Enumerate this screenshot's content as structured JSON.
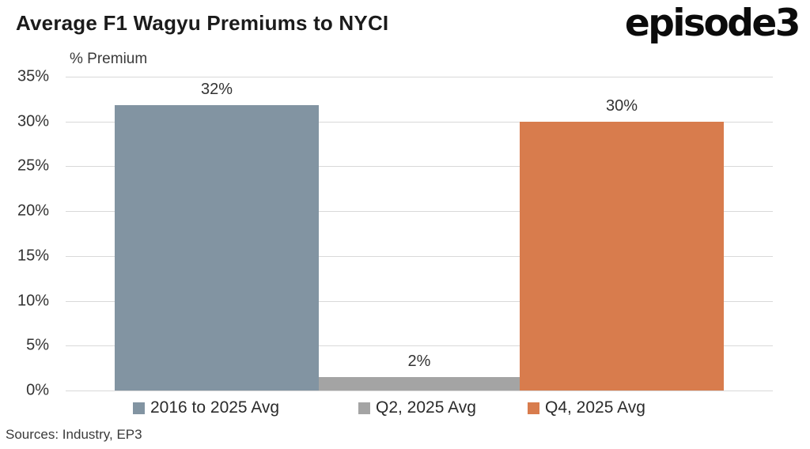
{
  "header": {
    "title": "Average F1 Wagyu Premiums to NYCI",
    "logo_text": "episode3"
  },
  "chart_data": {
    "type": "bar",
    "title": "Average F1 Wagyu Premiums to NYCI",
    "y_axis_title": "% Premium",
    "xlabel": "",
    "ylabel": "% Premium",
    "ylim": [
      0,
      35
    ],
    "y_tick_step": 5,
    "y_tick_labels": [
      "0%",
      "5%",
      "10%",
      "15%",
      "20%",
      "25%",
      "30%",
      "35%"
    ],
    "grid": "horizontal",
    "legend_position": "bottom",
    "series": [
      {
        "name": "2016 to 2025 Avg",
        "value": 32,
        "value_plotted": 31.8,
        "data_label": "32%",
        "color": "#8294a2"
      },
      {
        "name": "Q2, 2025 Avg",
        "value": 2,
        "value_plotted": 1.5,
        "data_label": "2%",
        "color": "#a4a4a4"
      },
      {
        "name": "Q4, 2025 Avg",
        "value": 30,
        "value_plotted": 30.0,
        "data_label": "30%",
        "color": "#d87c4d"
      }
    ]
  },
  "footer": {
    "sources": "Sources: Industry, EP3"
  },
  "colors": {
    "gridline": "#d9d9d9",
    "title_text": "#1b1b1b",
    "axis_text": "#333333",
    "logo_text": "#0b0b0b"
  }
}
